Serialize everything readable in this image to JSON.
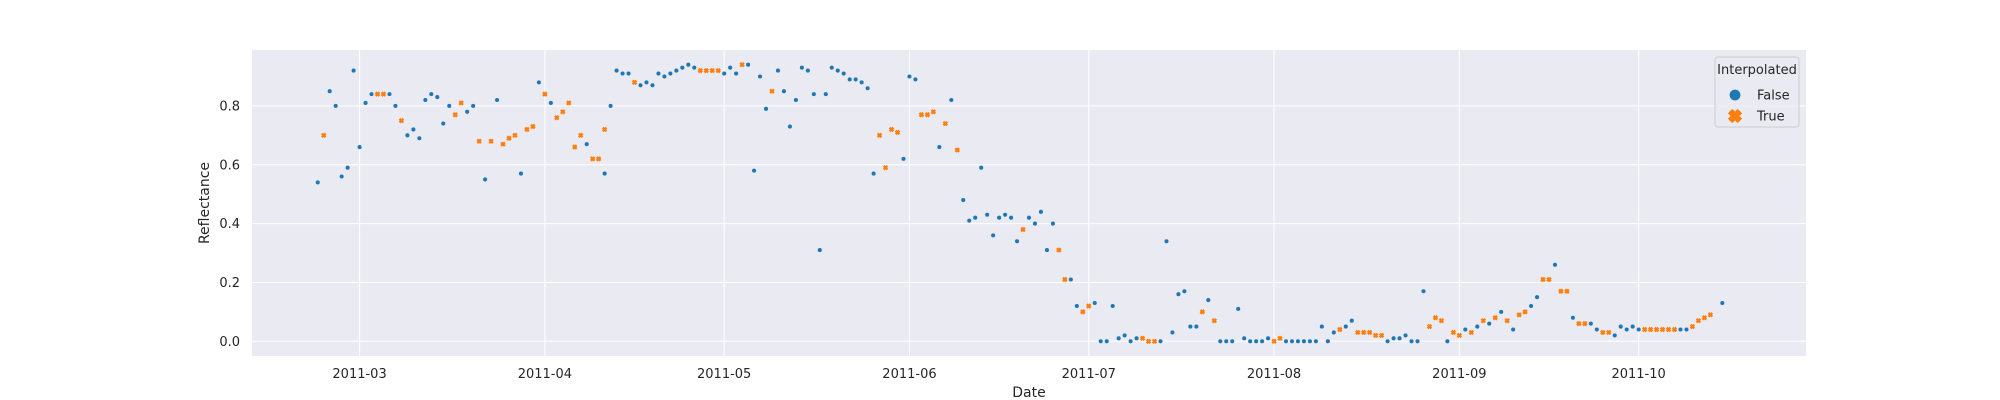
{
  "chart_data": {
    "type": "scatter",
    "xlabel": "Date",
    "ylabel": "Reflectance",
    "x_tick_labels": [
      "2011-03",
      "2011-04",
      "2011-05",
      "2011-06",
      "2011-07",
      "2011-08",
      "2011-09",
      "2011-10"
    ],
    "x_ticks": [
      "2011-03-01",
      "2011-04-01",
      "2011-05-01",
      "2011-06-01",
      "2011-07-01",
      "2011-08-01",
      "2011-09-01",
      "2011-10-01"
    ],
    "y_ticks": [
      0.0,
      0.2,
      0.4,
      0.6,
      0.8
    ],
    "y_tick_labels": [
      "0.0",
      "0.2",
      "0.4",
      "0.6",
      "0.8"
    ],
    "xlim": [
      "2011-02-11",
      "2011-10-29"
    ],
    "ylim": [
      -0.05,
      0.99
    ],
    "grid": true,
    "legend": {
      "title": "Interpolated",
      "position": "top-right"
    },
    "series": [
      {
        "name": "False",
        "color": "#1f77b4",
        "marker": "circle",
        "points": [
          [
            "2011-02-22",
            0.54
          ],
          [
            "2011-02-24",
            0.85
          ],
          [
            "2011-02-25",
            0.8
          ],
          [
            "2011-02-26",
            0.56
          ],
          [
            "2011-02-27",
            0.59
          ],
          [
            "2011-02-28",
            0.92
          ],
          [
            "2011-03-01",
            0.66
          ],
          [
            "2011-03-02",
            0.81
          ],
          [
            "2011-03-03",
            0.84
          ],
          [
            "2011-03-06",
            0.84
          ],
          [
            "2011-03-07",
            0.8
          ],
          [
            "2011-03-09",
            0.7
          ],
          [
            "2011-03-10",
            0.72
          ],
          [
            "2011-03-11",
            0.69
          ],
          [
            "2011-03-12",
            0.82
          ],
          [
            "2011-03-13",
            0.84
          ],
          [
            "2011-03-14",
            0.83
          ],
          [
            "2011-03-15",
            0.74
          ],
          [
            "2011-03-16",
            0.8
          ],
          [
            "2011-03-19",
            0.78
          ],
          [
            "2011-03-20",
            0.8
          ],
          [
            "2011-03-22",
            0.55
          ],
          [
            "2011-03-24",
            0.82
          ],
          [
            "2011-03-28",
            0.57
          ],
          [
            "2011-03-31",
            0.88
          ],
          [
            "2011-04-02",
            0.81
          ],
          [
            "2011-04-08",
            0.67
          ],
          [
            "2011-04-11",
            0.57
          ],
          [
            "2011-04-12",
            0.8
          ],
          [
            "2011-04-13",
            0.92
          ],
          [
            "2011-04-14",
            0.91
          ],
          [
            "2011-04-15",
            0.91
          ],
          [
            "2011-04-17",
            0.87
          ],
          [
            "2011-04-18",
            0.88
          ],
          [
            "2011-04-19",
            0.87
          ],
          [
            "2011-04-20",
            0.91
          ],
          [
            "2011-04-21",
            0.9
          ],
          [
            "2011-04-22",
            0.91
          ],
          [
            "2011-04-23",
            0.92
          ],
          [
            "2011-04-24",
            0.93
          ],
          [
            "2011-04-25",
            0.94
          ],
          [
            "2011-04-26",
            0.93
          ],
          [
            "2011-05-01",
            0.91
          ],
          [
            "2011-05-02",
            0.93
          ],
          [
            "2011-05-03",
            0.91
          ],
          [
            "2011-05-05",
            0.94
          ],
          [
            "2011-05-06",
            0.58
          ],
          [
            "2011-05-07",
            0.9
          ],
          [
            "2011-05-08",
            0.79
          ],
          [
            "2011-05-10",
            0.92
          ],
          [
            "2011-05-11",
            0.85
          ],
          [
            "2011-05-12",
            0.73
          ],
          [
            "2011-05-13",
            0.82
          ],
          [
            "2011-05-14",
            0.93
          ],
          [
            "2011-05-15",
            0.92
          ],
          [
            "2011-05-16",
            0.84
          ],
          [
            "2011-05-17",
            0.31
          ],
          [
            "2011-05-18",
            0.84
          ],
          [
            "2011-05-19",
            0.93
          ],
          [
            "2011-05-20",
            0.92
          ],
          [
            "2011-05-21",
            0.91
          ],
          [
            "2011-05-22",
            0.89
          ],
          [
            "2011-05-23",
            0.89
          ],
          [
            "2011-05-24",
            0.88
          ],
          [
            "2011-05-25",
            0.86
          ],
          [
            "2011-05-26",
            0.57
          ],
          [
            "2011-05-31",
            0.62
          ],
          [
            "2011-06-01",
            0.9
          ],
          [
            "2011-06-02",
            0.89
          ],
          [
            "2011-06-06",
            0.66
          ],
          [
            "2011-06-08",
            0.82
          ],
          [
            "2011-06-10",
            0.48
          ],
          [
            "2011-06-11",
            0.41
          ],
          [
            "2011-06-12",
            0.42
          ],
          [
            "2011-06-13",
            0.59
          ],
          [
            "2011-06-14",
            0.43
          ],
          [
            "2011-06-15",
            0.36
          ],
          [
            "2011-06-16",
            0.42
          ],
          [
            "2011-06-17",
            0.43
          ],
          [
            "2011-06-18",
            0.42
          ],
          [
            "2011-06-19",
            0.34
          ],
          [
            "2011-06-21",
            0.42
          ],
          [
            "2011-06-22",
            0.4
          ],
          [
            "2011-06-23",
            0.44
          ],
          [
            "2011-06-24",
            0.31
          ],
          [
            "2011-06-25",
            0.4
          ],
          [
            "2011-06-28",
            0.21
          ],
          [
            "2011-06-29",
            0.12
          ],
          [
            "2011-07-02",
            0.13
          ],
          [
            "2011-07-03",
            0.0
          ],
          [
            "2011-07-04",
            0.0
          ],
          [
            "2011-07-05",
            0.12
          ],
          [
            "2011-07-06",
            0.01
          ],
          [
            "2011-07-07",
            0.02
          ],
          [
            "2011-07-08",
            0.0
          ],
          [
            "2011-07-09",
            0.01
          ],
          [
            "2011-07-13",
            0.0
          ],
          [
            "2011-07-14",
            0.34
          ],
          [
            "2011-07-15",
            0.03
          ],
          [
            "2011-07-16",
            0.16
          ],
          [
            "2011-07-17",
            0.17
          ],
          [
            "2011-07-18",
            0.05
          ],
          [
            "2011-07-19",
            0.05
          ],
          [
            "2011-07-21",
            0.14
          ],
          [
            "2011-07-23",
            0.0
          ],
          [
            "2011-07-24",
            0.0
          ],
          [
            "2011-07-25",
            0.0
          ],
          [
            "2011-07-26",
            0.11
          ],
          [
            "2011-07-27",
            0.01
          ],
          [
            "2011-07-28",
            0.0
          ],
          [
            "2011-07-29",
            0.0
          ],
          [
            "2011-07-30",
            0.0
          ],
          [
            "2011-07-31",
            0.01
          ],
          [
            "2011-08-03",
            0.0
          ],
          [
            "2011-08-04",
            0.0
          ],
          [
            "2011-08-05",
            0.0
          ],
          [
            "2011-08-06",
            0.0
          ],
          [
            "2011-08-07",
            0.0
          ],
          [
            "2011-08-08",
            0.0
          ],
          [
            "2011-08-09",
            0.05
          ],
          [
            "2011-08-10",
            0.0
          ],
          [
            "2011-08-11",
            0.03
          ],
          [
            "2011-08-13",
            0.05
          ],
          [
            "2011-08-14",
            0.07
          ],
          [
            "2011-08-20",
            0.0
          ],
          [
            "2011-08-21",
            0.01
          ],
          [
            "2011-08-22",
            0.01
          ],
          [
            "2011-08-23",
            0.02
          ],
          [
            "2011-08-24",
            0.0
          ],
          [
            "2011-08-25",
            0.0
          ],
          [
            "2011-08-26",
            0.17
          ],
          [
            "2011-08-30",
            0.0
          ],
          [
            "2011-09-02",
            0.04
          ],
          [
            "2011-09-04",
            0.05
          ],
          [
            "2011-09-06",
            0.06
          ],
          [
            "2011-09-08",
            0.1
          ],
          [
            "2011-09-10",
            0.04
          ],
          [
            "2011-09-13",
            0.12
          ],
          [
            "2011-09-14",
            0.15
          ],
          [
            "2011-09-17",
            0.26
          ],
          [
            "2011-09-20",
            0.08
          ],
          [
            "2011-09-23",
            0.06
          ],
          [
            "2011-09-24",
            0.04
          ],
          [
            "2011-09-27",
            0.02
          ],
          [
            "2011-09-28",
            0.05
          ],
          [
            "2011-09-29",
            0.04
          ],
          [
            "2011-09-30",
            0.05
          ],
          [
            "2011-10-01",
            0.04
          ],
          [
            "2011-10-08",
            0.04
          ],
          [
            "2011-10-09",
            0.04
          ],
          [
            "2011-10-15",
            0.13
          ]
        ]
      },
      {
        "name": "True",
        "color": "#ff7f0e",
        "marker": "x",
        "points": [
          [
            "2011-02-23",
            0.7
          ],
          [
            "2011-03-04",
            0.84
          ],
          [
            "2011-03-05",
            0.84
          ],
          [
            "2011-03-08",
            0.75
          ],
          [
            "2011-03-17",
            0.77
          ],
          [
            "2011-03-18",
            0.81
          ],
          [
            "2011-03-21",
            0.68
          ],
          [
            "2011-03-23",
            0.68
          ],
          [
            "2011-03-25",
            0.67
          ],
          [
            "2011-03-26",
            0.69
          ],
          [
            "2011-03-27",
            0.7
          ],
          [
            "2011-03-29",
            0.72
          ],
          [
            "2011-03-30",
            0.73
          ],
          [
            "2011-04-01",
            0.84
          ],
          [
            "2011-04-03",
            0.76
          ],
          [
            "2011-04-04",
            0.78
          ],
          [
            "2011-04-05",
            0.81
          ],
          [
            "2011-04-06",
            0.66
          ],
          [
            "2011-04-07",
            0.7
          ],
          [
            "2011-04-09",
            0.62
          ],
          [
            "2011-04-10",
            0.62
          ],
          [
            "2011-04-11",
            0.72
          ],
          [
            "2011-04-16",
            0.88
          ],
          [
            "2011-04-27",
            0.92
          ],
          [
            "2011-04-28",
            0.92
          ],
          [
            "2011-04-29",
            0.92
          ],
          [
            "2011-04-30",
            0.92
          ],
          [
            "2011-05-04",
            0.94
          ],
          [
            "2011-05-09",
            0.85
          ],
          [
            "2011-05-27",
            0.7
          ],
          [
            "2011-05-28",
            0.59
          ],
          [
            "2011-05-29",
            0.72
          ],
          [
            "2011-05-30",
            0.71
          ],
          [
            "2011-06-03",
            0.77
          ],
          [
            "2011-06-04",
            0.77
          ],
          [
            "2011-06-05",
            0.78
          ],
          [
            "2011-06-07",
            0.74
          ],
          [
            "2011-06-09",
            0.65
          ],
          [
            "2011-06-20",
            0.38
          ],
          [
            "2011-06-26",
            0.31
          ],
          [
            "2011-06-27",
            0.21
          ],
          [
            "2011-06-30",
            0.1
          ],
          [
            "2011-07-01",
            0.12
          ],
          [
            "2011-07-10",
            0.01
          ],
          [
            "2011-07-11",
            0.0
          ],
          [
            "2011-07-12",
            0.0
          ],
          [
            "2011-07-20",
            0.1
          ],
          [
            "2011-07-22",
            0.07
          ],
          [
            "2011-08-01",
            0.0
          ],
          [
            "2011-08-02",
            0.01
          ],
          [
            "2011-08-12",
            0.04
          ],
          [
            "2011-08-15",
            0.03
          ],
          [
            "2011-08-16",
            0.03
          ],
          [
            "2011-08-17",
            0.03
          ],
          [
            "2011-08-18",
            0.02
          ],
          [
            "2011-08-19",
            0.02
          ],
          [
            "2011-08-27",
            0.05
          ],
          [
            "2011-08-28",
            0.08
          ],
          [
            "2011-08-29",
            0.07
          ],
          [
            "2011-08-31",
            0.03
          ],
          [
            "2011-09-01",
            0.02
          ],
          [
            "2011-09-03",
            0.03
          ],
          [
            "2011-09-05",
            0.07
          ],
          [
            "2011-09-07",
            0.08
          ],
          [
            "2011-09-09",
            0.07
          ],
          [
            "2011-09-11",
            0.09
          ],
          [
            "2011-09-12",
            0.1
          ],
          [
            "2011-09-15",
            0.21
          ],
          [
            "2011-09-16",
            0.21
          ],
          [
            "2011-09-18",
            0.17
          ],
          [
            "2011-09-19",
            0.17
          ],
          [
            "2011-09-21",
            0.06
          ],
          [
            "2011-09-22",
            0.06
          ],
          [
            "2011-09-25",
            0.03
          ],
          [
            "2011-09-26",
            0.03
          ],
          [
            "2011-10-02",
            0.04
          ],
          [
            "2011-10-03",
            0.04
          ],
          [
            "2011-10-04",
            0.04
          ],
          [
            "2011-10-05",
            0.04
          ],
          [
            "2011-10-06",
            0.04
          ],
          [
            "2011-10-07",
            0.04
          ],
          [
            "2011-10-10",
            0.05
          ],
          [
            "2011-10-11",
            0.07
          ],
          [
            "2011-10-12",
            0.08
          ],
          [
            "2011-10-13",
            0.09
          ]
        ]
      }
    ]
  }
}
